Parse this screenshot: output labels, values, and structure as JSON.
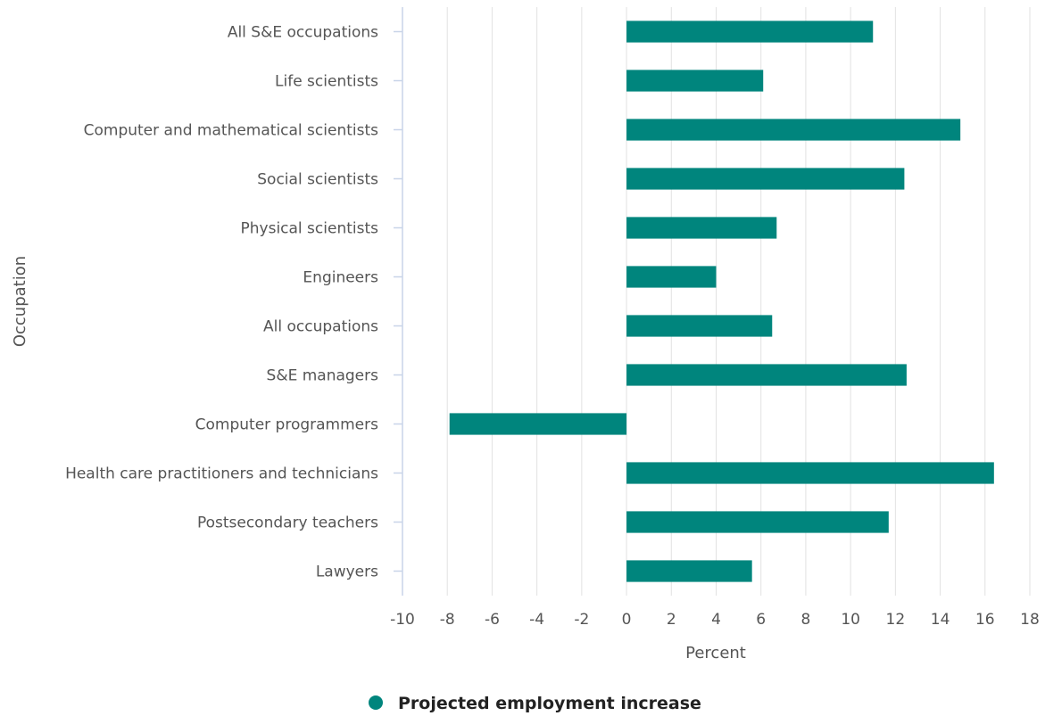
{
  "chart_data": {
    "type": "bar",
    "orientation": "horizontal",
    "categories": [
      "All S&E occupations",
      "Life scientists",
      "Computer and mathematical scientists",
      "Social scientists",
      "Physical scientists",
      "Engineers",
      "All occupations",
      "S&E managers",
      "Computer programmers",
      "Health care practitioners and technicians",
      "Postsecondary teachers",
      "Lawyers"
    ],
    "series": [
      {
        "name": "Projected employment increase",
        "values": [
          11.0,
          6.1,
          14.9,
          12.4,
          6.7,
          4.0,
          6.5,
          12.5,
          -7.9,
          16.4,
          11.7,
          5.6
        ]
      }
    ],
    "xlabel": "Percent",
    "ylabel": "Occupation",
    "xlim": [
      -10,
      18
    ],
    "xticks": [
      "-10",
      "-8",
      "-6",
      "-4",
      "-2",
      "0",
      "2",
      "4",
      "6",
      "8",
      "10",
      "12",
      "14",
      "16",
      "18"
    ],
    "grid": true,
    "legend_position": "bottom-center",
    "colors": {
      "bar": "#00857d",
      "grid": "#e2e2e2",
      "axis": "#c8d4e8"
    }
  }
}
